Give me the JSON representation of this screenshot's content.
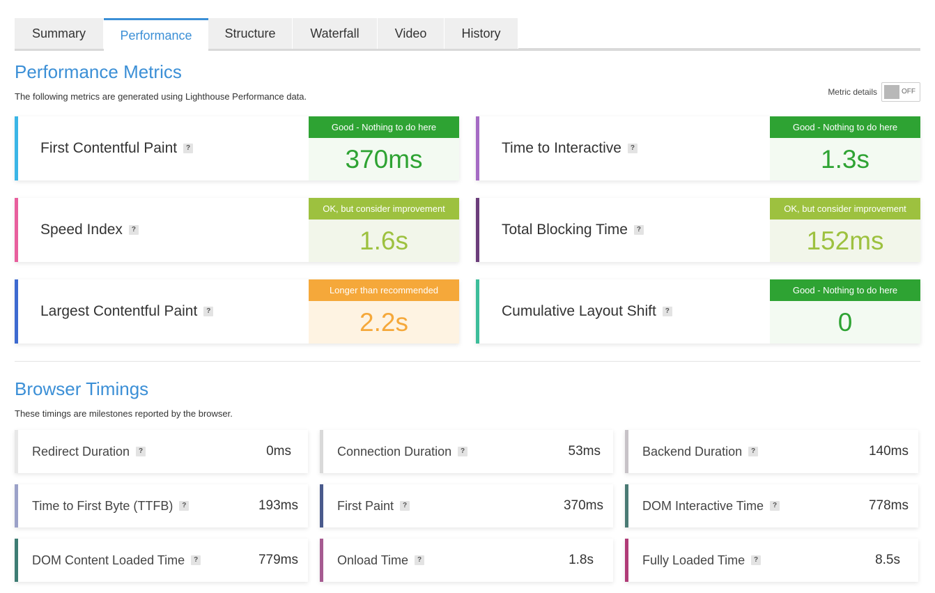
{
  "tabs": [
    "Summary",
    "Performance",
    "Structure",
    "Waterfall",
    "Video",
    "History"
  ],
  "performance": {
    "title": "Performance Metrics",
    "subtitle": "The following metrics are generated using Lighthouse Performance data.",
    "toggle": {
      "label": "Metric details",
      "state": "OFF"
    },
    "metrics": [
      {
        "name": "First Contentful Paint",
        "grade_label": "Good - Nothing to do here",
        "value": "370ms",
        "grade": "good",
        "accent": "#3ab5e6"
      },
      {
        "name": "Time to Interactive",
        "grade_label": "Good - Nothing to do here",
        "value": "1.3s",
        "grade": "good",
        "accent": "#a56bc4"
      },
      {
        "name": "Speed Index",
        "grade_label": "OK, but consider improvement",
        "value": "1.6s",
        "grade": "ok",
        "accent": "#e85f9d"
      },
      {
        "name": "Total Blocking Time",
        "grade_label": "OK, but consider improvement",
        "value": "152ms",
        "grade": "ok",
        "accent": "#6b3d7a"
      },
      {
        "name": "Largest Contentful Paint",
        "grade_label": "Longer than recommended",
        "value": "2.2s",
        "grade": "warn",
        "accent": "#3d6ad0"
      },
      {
        "name": "Cumulative Layout Shift",
        "grade_label": "Good - Nothing to do here",
        "value": "0",
        "grade": "good",
        "accent": "#3dbd9a"
      }
    ]
  },
  "browser": {
    "title": "Browser Timings",
    "subtitle": "These timings are milestones reported by the browser.",
    "timings": [
      {
        "name": "Redirect Duration",
        "value": "0ms",
        "accent": "#e8e8e8"
      },
      {
        "name": "Connection Duration",
        "value": "53ms",
        "accent": "#d9d9d9"
      },
      {
        "name": "Backend Duration",
        "value": "140ms",
        "accent": "#c7c2c7"
      },
      {
        "name": "Time to First Byte (TTFB)",
        "value": "193ms",
        "accent": "#9ba1c8"
      },
      {
        "name": "First Paint",
        "value": "370ms",
        "accent": "#4a5a8c"
      },
      {
        "name": "DOM Interactive Time",
        "value": "778ms",
        "accent": "#4a7a74"
      },
      {
        "name": "DOM Content Loaded Time",
        "value": "779ms",
        "accent": "#3d7c73"
      },
      {
        "name": "Onload Time",
        "value": "1.8s",
        "accent": "#a65b91"
      },
      {
        "name": "Fully Loaded Time",
        "value": "8.5s",
        "accent": "#b03b77"
      }
    ]
  },
  "help_icon_text": "?"
}
